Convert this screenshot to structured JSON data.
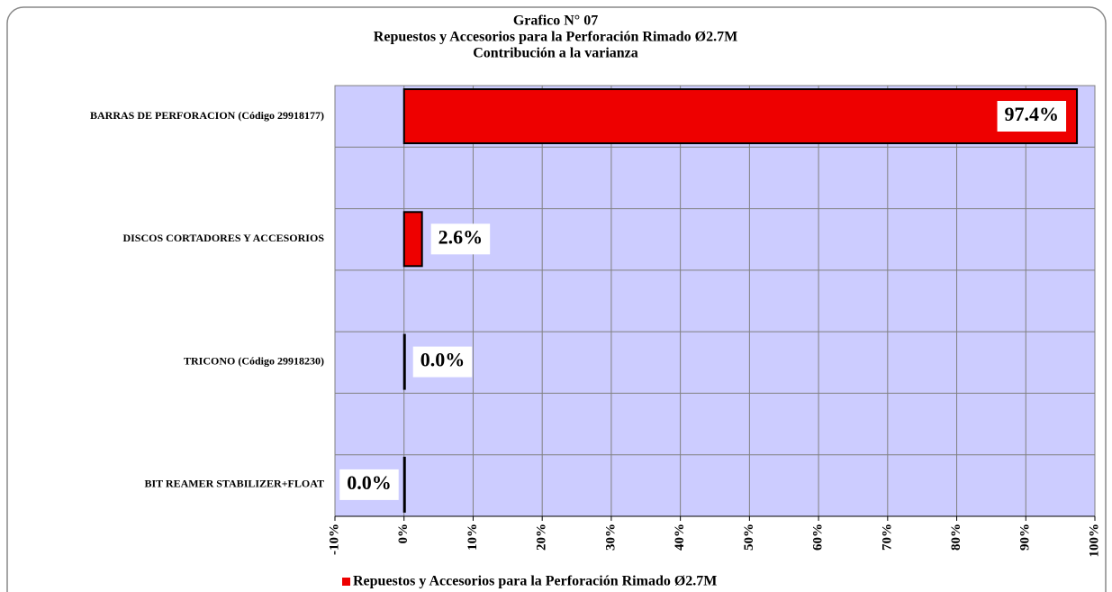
{
  "chart_data": {
    "type": "barh",
    "title": [
      "Grafico N° 07",
      "Repuestos y Accesorios para la Perforación Rimado Ø2.7M",
      "Contribución a la varianza"
    ],
    "categories": [
      "BARRAS DE PERFORACION (Código 29918177)",
      "DISCOS CORTADORES Y ACCESORIOS",
      "TRICONO (Código 29918230)",
      "BIT REAMER STABILIZER+FLOAT"
    ],
    "series": [
      {
        "name": "Repuestos y Accesorios para la Perforación Rimado Ø2.7M",
        "color": "#ee0000",
        "values": [
          97.4,
          2.6,
          0.0,
          0.0
        ],
        "value_labels": [
          "97.4%",
          "2.6%",
          "0.0%",
          "0.0%"
        ]
      }
    ],
    "xlim": [
      -10,
      100
    ],
    "xticks": [
      {
        "value": -10,
        "label": "-10%"
      },
      {
        "value": 0,
        "label": "0%"
      },
      {
        "value": 10,
        "label": "10%"
      },
      {
        "value": 20,
        "label": "20%"
      },
      {
        "value": 30,
        "label": "30%"
      },
      {
        "value": 40,
        "label": "40%"
      },
      {
        "value": 50,
        "label": "50%"
      },
      {
        "value": 60,
        "label": "60%"
      },
      {
        "value": 70,
        "label": "70%"
      },
      {
        "value": 80,
        "label": "80%"
      },
      {
        "value": 90,
        "label": "90%"
      },
      {
        "value": 100,
        "label": "100%"
      }
    ],
    "grid": true,
    "legend": "bottom"
  }
}
